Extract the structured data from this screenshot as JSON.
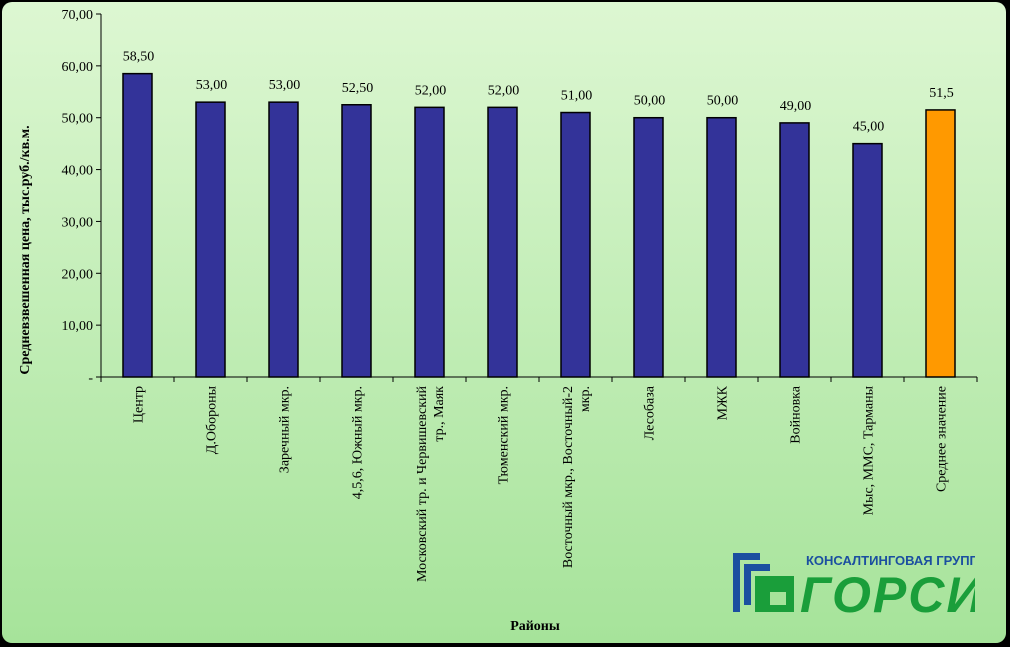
{
  "chart_data": {
    "type": "bar",
    "title": "",
    "ylabel": "Средневзвешенная цена, тыс.руб./кв.м.",
    "xlabel": "Районы",
    "ylim": [
      0,
      70
    ],
    "yticks": [
      0,
      10,
      20,
      30,
      40,
      50,
      60,
      70
    ],
    "ytick_labels": [
      "-",
      "10,00",
      "20,00",
      "30,00",
      "40,00",
      "50,00",
      "60,00",
      "70,00"
    ],
    "grid": false,
    "categories": [
      "Центр",
      "Д.Обороны",
      "Заречный мкр.",
      "4,5,6, Южный мкр.",
      "Московский тр. и Червишевский тр., Маяк",
      "Тюменский мкр.",
      "Восточный мкр., Восточный-2 мкр.",
      "Лесобаза",
      "МЖК",
      "Войновка",
      "Мыс, ММС, Тарманы",
      "Среднее значение"
    ],
    "category_lines": [
      [
        "Центр"
      ],
      [
        "Д.Обороны"
      ],
      [
        "Заречный мкр."
      ],
      [
        "4,5,6, Южный мкр."
      ],
      [
        "Московский тр. и Червишевский",
        "тр., Маяк"
      ],
      [
        "Тюменский мкр."
      ],
      [
        "Восточный мкр., Восточный-2",
        "мкр."
      ],
      [
        "Лесобаза"
      ],
      [
        "МЖК"
      ],
      [
        "Войновка"
      ],
      [
        "Мыс, ММС, Тарманы"
      ],
      [
        "Среднее значение"
      ]
    ],
    "values": [
      58.5,
      53.0,
      53.0,
      52.5,
      52.0,
      52.0,
      51.0,
      50.0,
      50.0,
      49.0,
      45.0,
      51.5
    ],
    "value_labels": [
      "58,50",
      "53,00",
      "53,00",
      "52,50",
      "52,00",
      "52,00",
      "51,00",
      "50,00",
      "50,00",
      "49,00",
      "45,00",
      "51,5"
    ],
    "colors": [
      "#333399",
      "#333399",
      "#333399",
      "#333399",
      "#333399",
      "#333399",
      "#333399",
      "#333399",
      "#333399",
      "#333399",
      "#333399",
      "#FF9900"
    ]
  },
  "logo": {
    "caption": "КОНСАЛТИНГОВАЯ ГРУППА",
    "name": "ГОРСИ",
    "blue": "#1B4FA0",
    "green": "#1A9E3A"
  },
  "background": {
    "top": "#DDF7D2",
    "bottom": "#A6E39A"
  }
}
